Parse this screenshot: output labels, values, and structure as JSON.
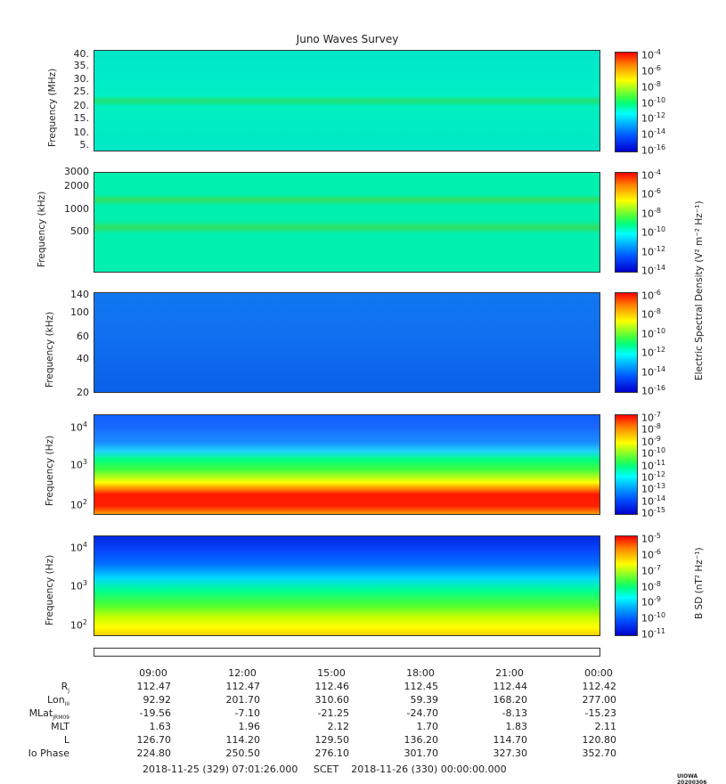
{
  "chart_data": [
    {
      "type": "heatmap",
      "title": "Juno Waves Survey",
      "ylabel": "Frequency (MHz)",
      "yticks": [
        "40.",
        "35.",
        "30.",
        "25.",
        "20.",
        "15.",
        "10.",
        "5."
      ],
      "colorbar_ticks": [
        "-4",
        "-6",
        "-8",
        "-10",
        "-12",
        "-14",
        "-16"
      ],
      "colorbar_base": "10"
    },
    {
      "type": "heatmap",
      "ylabel": "Frequency (kHz)",
      "yticks": [
        "3000",
        "2000",
        "1000",
        "500"
      ],
      "colorbar_ticks": [
        "-4",
        "-6",
        "-8",
        "-10",
        "-12",
        "-14"
      ],
      "colorbar_base": "10"
    },
    {
      "type": "heatmap",
      "ylabel": "Frequency (kHz)",
      "yticks": [
        "140",
        "100",
        "60",
        "40",
        "20"
      ],
      "colorbar_ticks": [
        "-6",
        "-8",
        "-10",
        "-12",
        "-14",
        "-16"
      ],
      "colorbar_base": "10"
    },
    {
      "type": "heatmap",
      "ylabel": "Frequency (Hz)",
      "yticks_exp": [
        "4",
        "3",
        "2"
      ],
      "colorbar_ticks": [
        "-7",
        "-8",
        "-9",
        "-10",
        "-11",
        "-12",
        "-13",
        "-14",
        "-15"
      ],
      "colorbar_base": "10"
    },
    {
      "type": "heatmap",
      "ylabel": "Frequency (Hz)",
      "yticks_exp": [
        "4",
        "3",
        "2"
      ],
      "colorbar_ticks": [
        "-5",
        "-6",
        "-7",
        "-8",
        "-9",
        "-10",
        "-11"
      ],
      "colorbar_base": "10",
      "colorbar_label": "B SD (nT² Hz⁻¹)"
    }
  ],
  "shared_colorbar_label": "Electric Spectral Density (V² m⁻² Hz⁻¹)",
  "time_ticks": [
    "09:00",
    "12:00",
    "15:00",
    "18:00",
    "21:00",
    "00:00"
  ],
  "ephemeris": [
    {
      "name": "R",
      "sub": "J",
      "values": [
        "112.47",
        "112.47",
        "112.46",
        "112.45",
        "112.44",
        "112.42"
      ]
    },
    {
      "name": "Lon",
      "sub": "III",
      "values": [
        "92.92",
        "201.70",
        "310.60",
        "59.39",
        "168.20",
        "277.00"
      ]
    },
    {
      "name": "MLat",
      "sub": "JRM09",
      "values": [
        "-19.56",
        "-7.10",
        "-21.25",
        "-24.70",
        "-8.13",
        "-15.23"
      ]
    },
    {
      "name": "MLT",
      "sub": "",
      "values": [
        "1.63",
        "1.96",
        "2.12",
        "1.70",
        "1.83",
        "2.11"
      ]
    },
    {
      "name": "L",
      "sub": "",
      "values": [
        "126.70",
        "114.20",
        "129.50",
        "136.20",
        "114.70",
        "120.80"
      ]
    },
    {
      "name": "Io Phase",
      "sub": "",
      "values": [
        "224.80",
        "250.50",
        "276.10",
        "301.70",
        "327.30",
        "352.70"
      ]
    }
  ],
  "footer": "2018-11-25 (329) 07:01:26.000     SCET    2018-11-26 (330) 00:00:00.000",
  "stamp": "UIOWA 20200306"
}
